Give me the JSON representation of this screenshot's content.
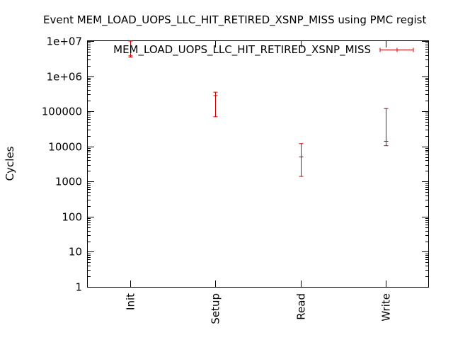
{
  "chart_data": {
    "type": "scatter",
    "title": "Event MEM_LOAD_UOPS_LLC_HIT_RETIRED_XSNP_MISS using PMC regist",
    "xlabel": "",
    "ylabel": "Cycles",
    "y_scale": "log",
    "ylim": [
      1,
      10000000
    ],
    "y_ticks": [
      {
        "value": 1,
        "label": "1"
      },
      {
        "value": 10,
        "label": "10"
      },
      {
        "value": 100,
        "label": "100"
      },
      {
        "value": 1000,
        "label": "1000"
      },
      {
        "value": 10000,
        "label": "10000"
      },
      {
        "value": 100000,
        "label": "100000"
      },
      {
        "value": 1000000,
        "label": "1e+06"
      },
      {
        "value": 10000000,
        "label": "1e+07"
      }
    ],
    "categories": [
      "Init",
      "Setup",
      "Read",
      "Write"
    ],
    "grid": false,
    "legend_position": "top-right",
    "series": [
      {
        "name": "MEM_LOAD_UOPS_LLC_HIT_RETIRED_XSNP_MISS",
        "color": "#cc0000",
        "points": [
          {
            "category": "Init",
            "y": 3800000,
            "y_low": 3500000,
            "y_high": 10000000
          },
          {
            "category": "Setup",
            "y": 280000,
            "y_low": 70000,
            "y_high": 350000
          },
          {
            "category": "Read",
            "y": 5000,
            "y_low": 1400,
            "y_high": 12000
          },
          {
            "category": "Write",
            "y": 14000,
            "y_low": 10500,
            "y_high": 120000
          }
        ]
      }
    ]
  }
}
